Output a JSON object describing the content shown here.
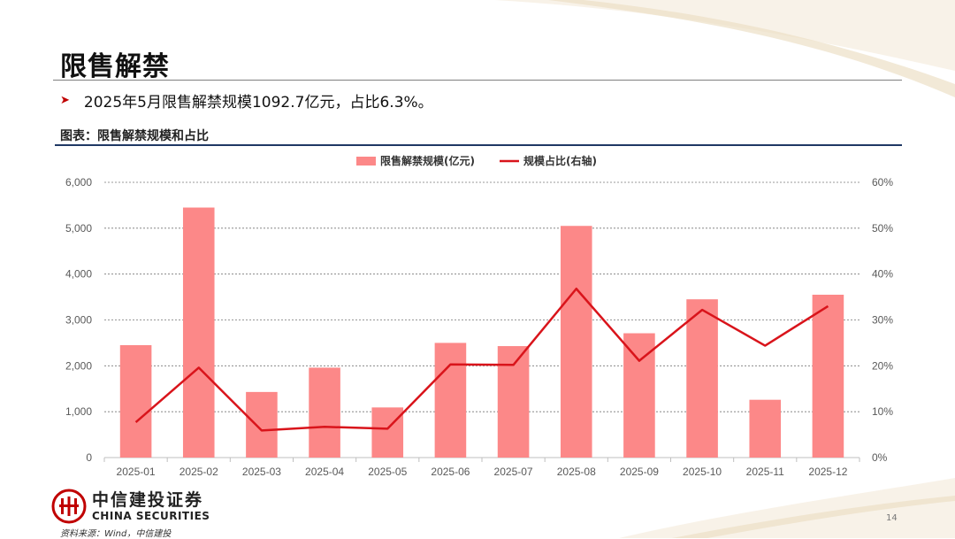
{
  "page": {
    "title": "限售解禁",
    "bullet": "2025年5月限售解禁规模1092.7亿元，占比6.3%。",
    "figure_caption": "图表：限售解禁规模和占比",
    "source": "资料来源：Wind，中信建投",
    "page_number": "14"
  },
  "logo": {
    "cn": "中信建投证券",
    "en": "CHINA SECURITIES"
  },
  "colors": {
    "bar": "#fc8888",
    "line": "#d9141b",
    "caption_rule": "#1f3864",
    "accent": "#c00000"
  },
  "chart_data": {
    "type": "bar",
    "categories": [
      "2025-01",
      "2025-02",
      "2025-03",
      "2025-04",
      "2025-05",
      "2025-06",
      "2025-07",
      "2025-08",
      "2025-09",
      "2025-10",
      "2025-11",
      "2025-12"
    ],
    "series": [
      {
        "name": "限售解禁规模(亿元)",
        "type": "bar",
        "axis": "left",
        "values": [
          2450,
          5450,
          1430,
          1960,
          1093,
          2500,
          2430,
          5050,
          2710,
          3450,
          1260,
          3550
        ]
      },
      {
        "name": "规模占比(右轴)",
        "type": "line",
        "axis": "right",
        "values": [
          7.7,
          19.6,
          5.9,
          6.7,
          6.3,
          20.3,
          20.2,
          36.8,
          21.1,
          32.2,
          24.4,
          33.0
        ]
      }
    ],
    "yleft": {
      "min": 0,
      "max": 6000,
      "ticks": [
        "0",
        "1,000",
        "2,000",
        "3,000",
        "4,000",
        "5,000",
        "6,000"
      ]
    },
    "yright": {
      "min": 0,
      "max": 60,
      "ticks": [
        "0%",
        "10%",
        "20%",
        "30%",
        "40%",
        "50%",
        "60%"
      ]
    },
    "grid": "horizontal-dashed",
    "legend_position": "top-center"
  }
}
